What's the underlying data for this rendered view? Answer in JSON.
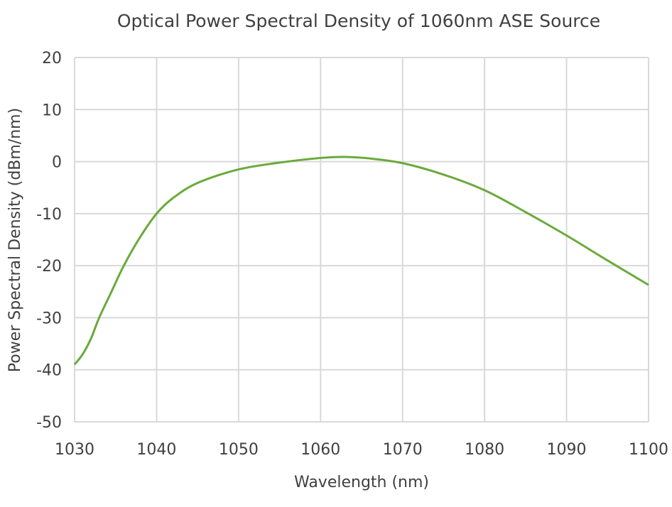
{
  "chart_data": {
    "type": "line",
    "title": "Optical Power Spectral Density of 1060nm ASE Source",
    "xlabel": "Wavelength (nm)",
    "ylabel": "Power Spectral Density (dBm/nm)",
    "xlim": [
      1030,
      1100
    ],
    "ylim": [
      -50,
      20
    ],
    "xticks": [
      1030,
      1040,
      1050,
      1060,
      1070,
      1080,
      1090,
      1100
    ],
    "yticks": [
      20,
      10,
      0,
      -10,
      -20,
      -30,
      -40,
      -50
    ],
    "grid": true,
    "line_color": "#6aaa3c",
    "series": [
      {
        "x": [
          1030,
          1031,
          1032,
          1033,
          1034.5,
          1036,
          1038,
          1040,
          1042,
          1045,
          1050,
          1055,
          1060,
          1063,
          1066,
          1070,
          1075,
          1080,
          1085,
          1090,
          1095,
          1100
        ],
        "y": [
          -39,
          -37,
          -34,
          -30,
          -25,
          -20,
          -14.5,
          -10,
          -7,
          -4.1,
          -1.5,
          -0.2,
          0.7,
          0.9,
          0.6,
          -0.3,
          -2.5,
          -5.5,
          -9.7,
          -14.2,
          -19,
          -23.7
        ]
      }
    ]
  }
}
